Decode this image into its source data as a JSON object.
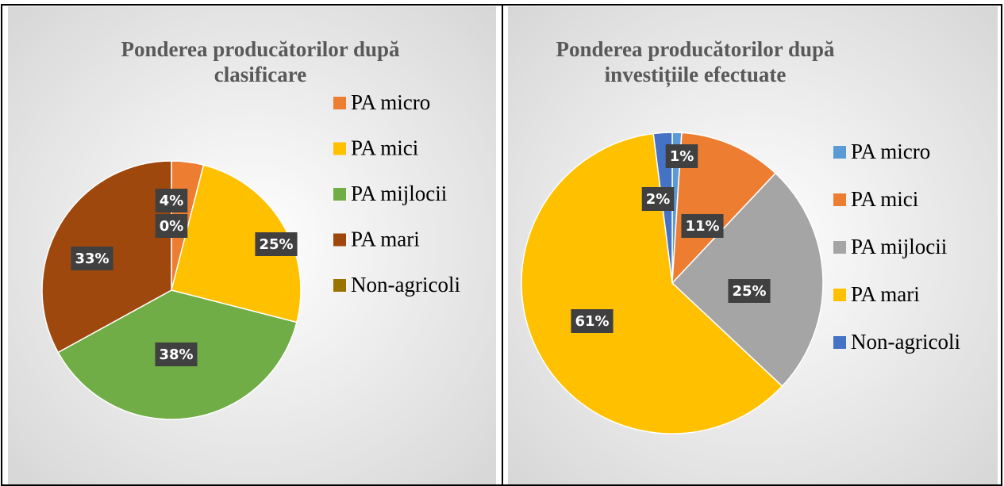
{
  "chart_data": [
    {
      "type": "pie",
      "title": [
        "Ponderea producătorilor după",
        "clasificare"
      ],
      "categories": [
        "PA micro",
        "PA mici",
        "PA mijlocii",
        "PA mari",
        "Non-agricoli"
      ],
      "values": [
        4,
        25,
        38,
        33,
        0
      ],
      "value_labels": [
        "4%",
        "25%",
        "38%",
        "33%",
        "0%"
      ],
      "colors": [
        "#ed7d31",
        "#ffc000",
        "#70ad47",
        "#9e480e",
        "#997300"
      ],
      "legend": "right"
    },
    {
      "type": "pie",
      "title": [
        "Ponderea producătorilor după",
        "investițiile efectuate"
      ],
      "categories": [
        "PA micro",
        "PA mici",
        "PA mijlocii",
        "PA mari",
        "Non-agricoli"
      ],
      "values": [
        1,
        11,
        25,
        61,
        2
      ],
      "value_labels": [
        "1%",
        "11%",
        "25%",
        "61%",
        "2%"
      ],
      "colors": [
        "#5b9bd5",
        "#ed7d31",
        "#a5a5a5",
        "#ffc000",
        "#4472c4"
      ],
      "legend": "right"
    }
  ]
}
